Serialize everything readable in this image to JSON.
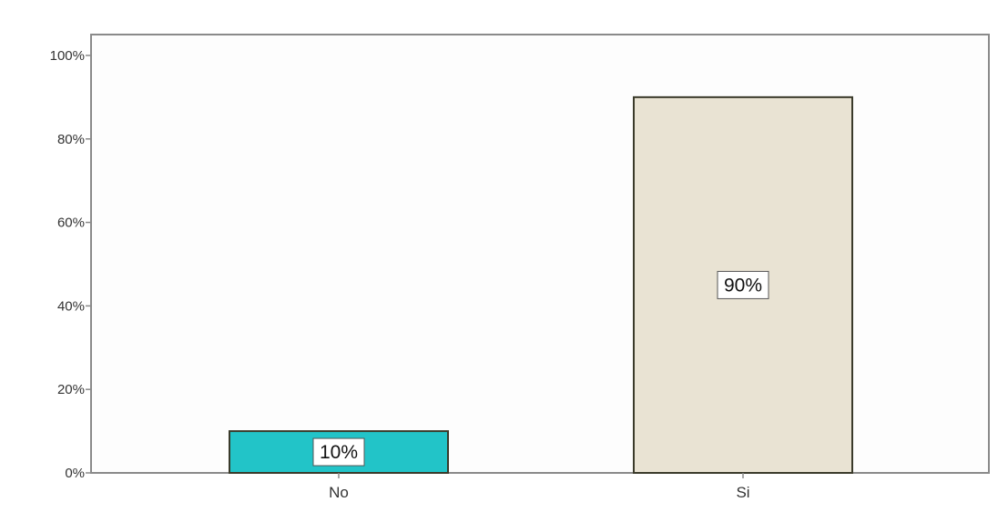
{
  "chart_data": {
    "type": "bar",
    "categories": [
      "No",
      "Si"
    ],
    "values": [
      10,
      90
    ],
    "data_labels": [
      "10%",
      "90%"
    ],
    "colors": [
      "#22c4c8",
      "#e9e3d3"
    ],
    "ylim": [
      0,
      105
    ],
    "yticks": [
      0,
      20,
      40,
      60,
      80,
      100
    ],
    "ytick_labels": [
      "0%",
      "20%",
      "40%",
      "60%",
      "80%",
      "100%"
    ],
    "grid": false,
    "legend": "none"
  }
}
